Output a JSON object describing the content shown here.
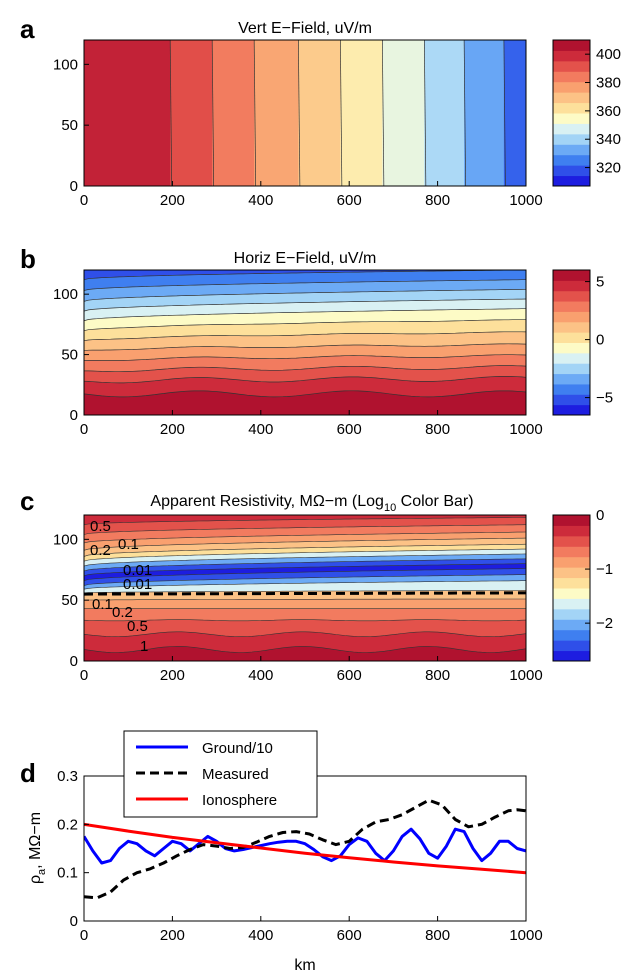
{
  "chart_data": [
    {
      "panel": "a",
      "type": "heatmap",
      "title": "Vert E−Field, uV/m",
      "x_ticks": [
        0,
        200,
        400,
        600,
        800,
        1000
      ],
      "y_ticks": [
        0,
        50,
        100
      ],
      "xlim": [
        0,
        1000
      ],
      "ylim": [
        0,
        120
      ],
      "colorbar": {
        "range": [
          307,
          410
        ],
        "ticks": [
          320,
          340,
          360,
          380,
          400
        ]
      },
      "bands": [
        {
          "x0": 0,
          "x1": 195,
          "value": 405
        },
        {
          "x0": 195,
          "x1": 290,
          "value": 395
        },
        {
          "x0": 290,
          "x1": 385,
          "value": 386
        },
        {
          "x0": 385,
          "x1": 485,
          "value": 377
        },
        {
          "x0": 485,
          "x1": 580,
          "value": 368
        },
        {
          "x0": 580,
          "x1": 675,
          "value": 359
        },
        {
          "x0": 675,
          "x1": 770,
          "value": 350
        },
        {
          "x0": 770,
          "x1": 860,
          "value": 340
        },
        {
          "x0": 860,
          "x1": 950,
          "value": 330
        },
        {
          "x0": 950,
          "x1": 1000,
          "value": 318
        }
      ]
    },
    {
      "panel": "b",
      "type": "heatmap",
      "title": "Horiz E−Field, uV/m",
      "x_ticks": [
        0,
        200,
        400,
        600,
        800,
        1000
      ],
      "y_ticks": [
        0,
        50,
        100
      ],
      "xlim": [
        0,
        1000
      ],
      "ylim": [
        0,
        120
      ],
      "colorbar": {
        "range": [
          -6.5,
          6
        ],
        "ticks": [
          5,
          0,
          -5
        ]
      },
      "field": "horizontal contour layers, negative at top, strongly positive near ground"
    },
    {
      "panel": "c",
      "type": "heatmap",
      "title": "Apparent Resistivity, MΩ−m (Log",
      "title_sub": "10",
      "title_tail": " Color Bar)",
      "x_ticks": [
        0,
        200,
        400,
        600,
        800,
        1000
      ],
      "y_ticks": [
        0,
        50,
        100
      ],
      "xlim": [
        0,
        1000
      ],
      "ylim": [
        0,
        120
      ],
      "colorbar": {
        "range": [
          -2.7,
          0
        ],
        "ticks": [
          0,
          -1,
          -2
        ]
      },
      "contour_labels": [
        "0.5",
        "0.2",
        "0.1",
        "0.01",
        "0.01",
        "0.1",
        "0.2",
        "0.5",
        "1"
      ]
    },
    {
      "panel": "d",
      "type": "line",
      "xlabel": "km",
      "ylabel": "ρ",
      "ylabel_sub": "a",
      "ylabel_tail": ", MΩ−m",
      "xlim": [
        0,
        1000
      ],
      "ylim": [
        0,
        0.3
      ],
      "x_ticks": [
        0,
        200,
        400,
        600,
        800,
        1000
      ],
      "y_ticks": [
        "0",
        "0.1",
        "0.2",
        "0.3"
      ],
      "legend_position": "top-left",
      "series": [
        {
          "name": "Ground/10",
          "color": "#0000ff",
          "style": "solid",
          "x": [
            0,
            20,
            40,
            60,
            80,
            100,
            120,
            140,
            160,
            180,
            200,
            220,
            240,
            260,
            280,
            300,
            320,
            340,
            360,
            380,
            400,
            420,
            440,
            460,
            480,
            500,
            520,
            540,
            560,
            580,
            600,
            620,
            640,
            660,
            680,
            700,
            720,
            740,
            760,
            780,
            800,
            820,
            840,
            860,
            880,
            900,
            920,
            940,
            960,
            980,
            1000
          ],
          "y": [
            0.175,
            0.145,
            0.12,
            0.125,
            0.15,
            0.165,
            0.16,
            0.145,
            0.135,
            0.15,
            0.165,
            0.16,
            0.145,
            0.16,
            0.175,
            0.165,
            0.15,
            0.145,
            0.148,
            0.152,
            0.156,
            0.16,
            0.163,
            0.165,
            0.165,
            0.16,
            0.148,
            0.133,
            0.125,
            0.135,
            0.158,
            0.172,
            0.165,
            0.14,
            0.125,
            0.145,
            0.175,
            0.19,
            0.17,
            0.14,
            0.13,
            0.155,
            0.19,
            0.185,
            0.15,
            0.125,
            0.14,
            0.165,
            0.165,
            0.15,
            0.145
          ]
        },
        {
          "name": "Measured",
          "color": "#000000",
          "style": "dashed",
          "x": [
            0,
            30,
            60,
            90,
            120,
            150,
            180,
            210,
            240,
            270,
            300,
            330,
            360,
            390,
            420,
            450,
            480,
            510,
            540,
            570,
            600,
            630,
            660,
            690,
            720,
            750,
            780,
            810,
            840,
            870,
            900,
            930,
            960,
            980,
            1000
          ],
          "y": [
            0.05,
            0.048,
            0.06,
            0.085,
            0.1,
            0.108,
            0.12,
            0.135,
            0.148,
            0.158,
            0.155,
            0.15,
            0.152,
            0.163,
            0.175,
            0.183,
            0.185,
            0.18,
            0.168,
            0.158,
            0.165,
            0.19,
            0.205,
            0.21,
            0.22,
            0.235,
            0.25,
            0.24,
            0.21,
            0.195,
            0.2,
            0.215,
            0.228,
            0.23,
            0.228
          ]
        },
        {
          "name": "Ionosphere",
          "color": "#ff0000",
          "style": "solid",
          "x": [
            0,
            100,
            200,
            300,
            400,
            500,
            600,
            700,
            800,
            900,
            1000
          ],
          "y": [
            0.2,
            0.186,
            0.173,
            0.162,
            0.151,
            0.14,
            0.131,
            0.122,
            0.114,
            0.107,
            0.1
          ]
        }
      ]
    }
  ],
  "panel_letters": [
    "a",
    "b",
    "c",
    "d"
  ]
}
